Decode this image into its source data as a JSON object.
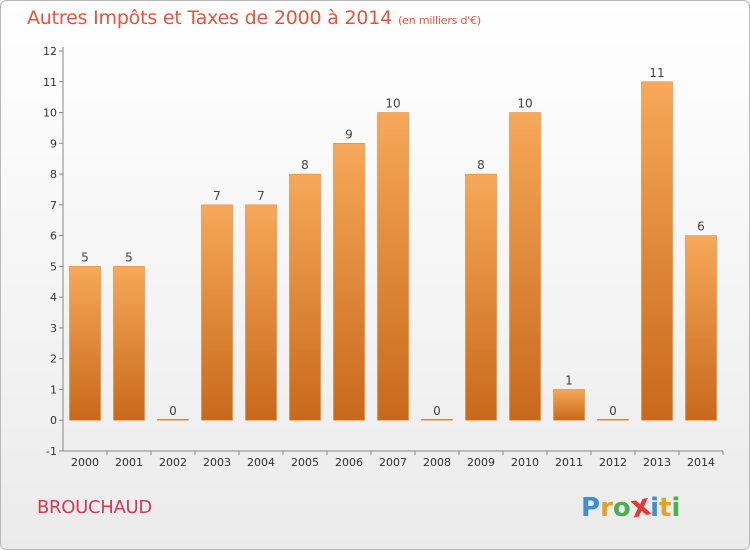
{
  "title": "Autres Impôts et Taxes de 2000 à 2014",
  "unit": "(en milliers d'€)",
  "commune": "BROUCHAUD",
  "logo": {
    "letters": [
      "P",
      "r",
      "o",
      "x",
      "i",
      "t",
      "i"
    ],
    "colors": [
      "#3b8fd6",
      "#e8a020",
      "#4caf50",
      "#e53935",
      "#3b8fd6",
      "#e8a020",
      "#4caf50"
    ]
  },
  "colors": {
    "bar_top": "#f7a85a",
    "bar_bottom": "#c8691a",
    "title": "#e2553a",
    "commune": "#d03a5a"
  },
  "chart_data": {
    "type": "bar",
    "title": "Autres Impôts et Taxes de 2000 à 2014",
    "categories": [
      "2000",
      "2001",
      "2002",
      "2003",
      "2004",
      "2005",
      "2006",
      "2007",
      "2008",
      "2009",
      "2010",
      "2011",
      "2012",
      "2013",
      "2014"
    ],
    "values": [
      5,
      5,
      0,
      7,
      7,
      8,
      9,
      10,
      0,
      8,
      10,
      1,
      0,
      11,
      6
    ],
    "yticks": [
      "-1",
      "0",
      "1",
      "2",
      "3",
      "4",
      "5",
      "6",
      "7",
      "8",
      "9",
      "10",
      "11",
      "12"
    ],
    "ylim": [
      -1,
      12
    ],
    "grid": false,
    "legend": "none"
  }
}
